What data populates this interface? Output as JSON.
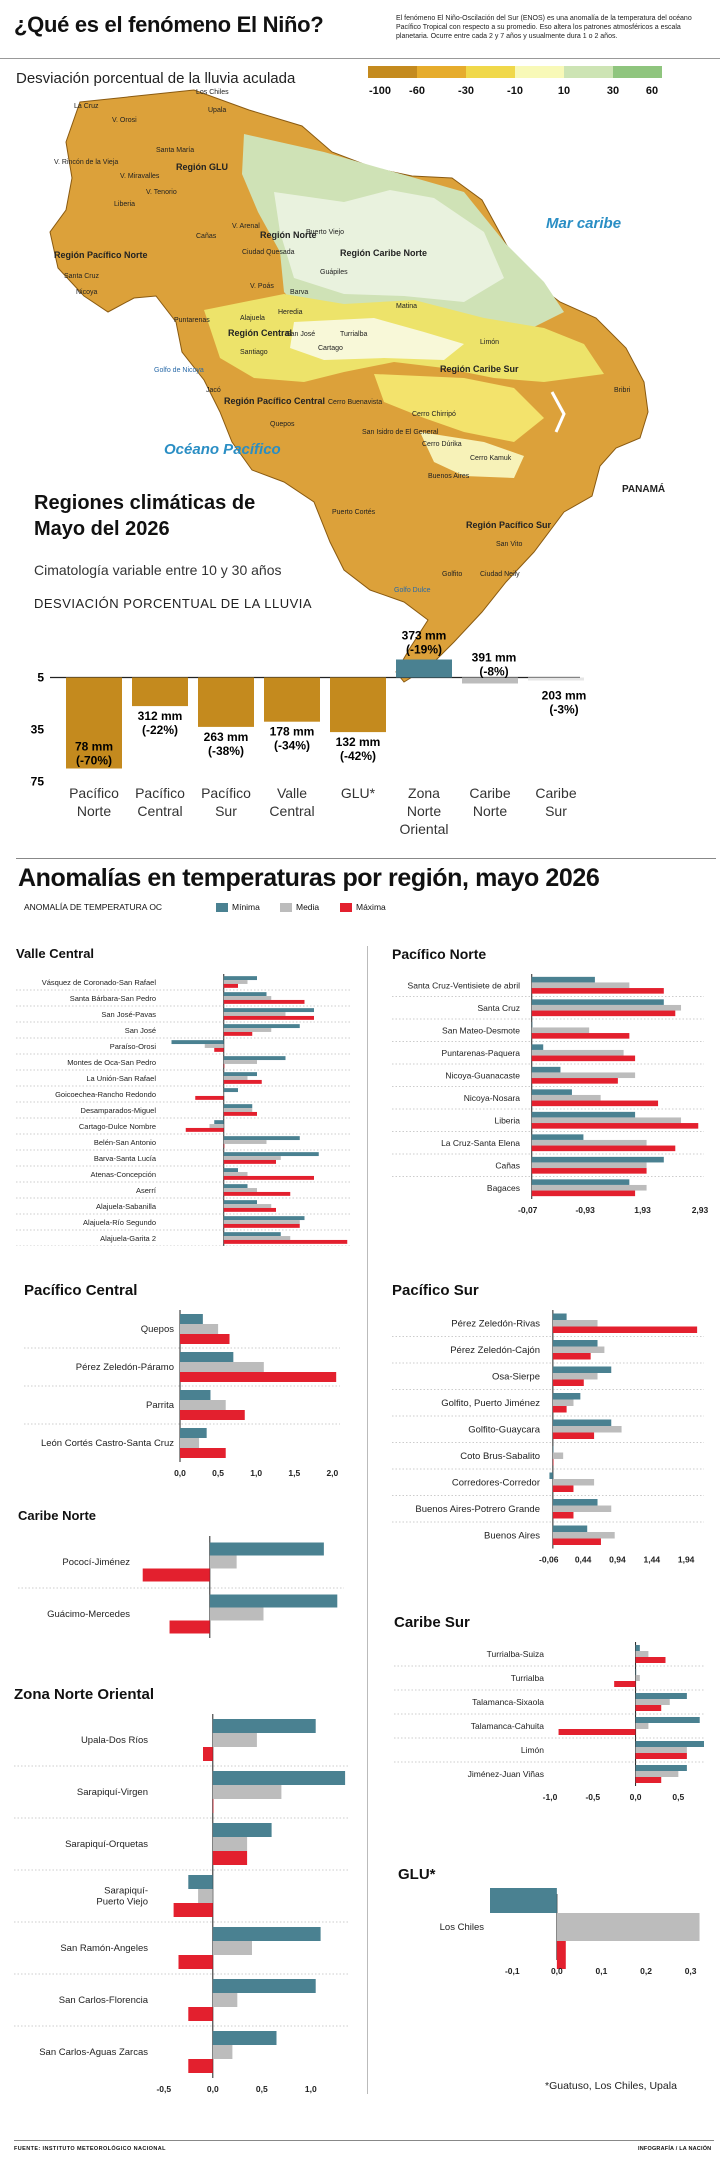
{
  "header": {
    "title": "¿Qué es el fenómeno El Niño?",
    "intro": "El fenómeno El Niño-Oscilación del Sur (ENOS) es una anomalía de la temperatura del océano Pacífico Tropical con respecto a su promedio. Eso altera los patrones atmosféricos a escala planetaria. Ocurre entre cada 2 y 7 años y usualmente dura 1 o 2 años."
  },
  "map": {
    "subtitle": "Desviación porcentual de la lluvia aculada",
    "scale": {
      "labels": [
        "-100",
        "-60",
        "-30",
        "-10",
        "10",
        "30",
        "60"
      ],
      "colors": [
        "#c48a1e",
        "#e6ac2c",
        "#f0d84a",
        "#f8f9b8",
        "#cde4b4",
        "#8fc57e"
      ]
    },
    "sea_labels": {
      "caribbean": "Mar caribe",
      "pacific": "Océano Pacífico",
      "panama": "PANAMÁ"
    },
    "regions": [
      "Región GLU",
      "Región Pacífico Norte",
      "Región Norte",
      "Región Caribe Norte",
      "Región Central",
      "Región Caribe Sur",
      "Región Pacífico Central",
      "Región Pacífico Sur"
    ],
    "places": [
      "La Cruz",
      "V. Orosi",
      "V. Rincón de la Vieja",
      "Santa María",
      "V. Miravalles",
      "V. Tenorio",
      "Liberia",
      "Los Chiles",
      "Upala",
      "Cañas",
      "V. Arenal",
      "Ciudad Quesada",
      "Puerto Viejo",
      "Guápiles",
      "Matina",
      "Santa Cruz",
      "Nicoya",
      "V. Poás",
      "Barva",
      "Alajuela",
      "Heredia",
      "San José",
      "Turrialba",
      "Cartago",
      "Puntarenas",
      "Santiago",
      "Limón",
      "Jacó",
      "Cerro Buenavista",
      "Quepos",
      "Cerro Chirripó",
      "San Isidro de El General",
      "Bribri",
      "Cerro Dúrika",
      "Cerro Kamuk",
      "Buenos Aires",
      "Puerto Cortés",
      "San Vito",
      "Golfito",
      "Ciudad Neily",
      "Golfo Dulce",
      "Golfo de Nicoya"
    ]
  },
  "rain": {
    "title_line1": "Regiones climáticas de",
    "title_line2": "Mayo del 2026",
    "subtitle": "Cimatología variable entre 10 y 30 años",
    "note": "DESVIACIÓN  PORCENTUAL DE LA LLUVIA"
  },
  "temp": {
    "title": "Anomalías en temperaturas por región, mayo 2026",
    "axis_label": "ANOMALÍA DE TEMPERATURA OC",
    "legend": [
      "Mínima",
      "Media",
      "Máxima"
    ],
    "colors": {
      "min": "#4a8191",
      "mean": "#bcbcbc",
      "max": "#e3202e"
    }
  },
  "chart_data": [
    {
      "id": "rain",
      "type": "bar",
      "categories": [
        "Pacífico Norte",
        "Pacífico Central",
        "Pacífico Sur",
        "Valle Central",
        "GLU*",
        "Zona Norte Oriental",
        "Caribe Norte",
        "Caribe Sur"
      ],
      "values": [
        -70,
        -22,
        -38,
        -34,
        -42,
        -19,
        -8,
        -3
      ],
      "labels_mm": [
        "78 mm",
        "312 mm",
        "263 mm",
        "178 mm",
        "132 mm",
        "373 mm",
        "391 mm",
        "203 mm"
      ],
      "labels_pct": [
        "(-70%)",
        "(-22%)",
        "(-38%)",
        "(-34%)",
        "(-42%)",
        "(-19%)",
        "(-8%)",
        "(-3%)"
      ],
      "yticks": [
        "5",
        "-35",
        "-75"
      ],
      "ylim": [
        -75,
        5
      ]
    },
    {
      "id": "valle-central",
      "type": "bar",
      "title": "Valle Central",
      "categories": [
        "Vásquez de Coronado-San Rafael",
        "Santa Bárbara-San Pedro",
        "San José-Pavas",
        "San José",
        "Paraíso-Orosi",
        "Montes de Oca-San Pedro",
        "La Unión-San Rafael",
        "Goicoechea-Rancho Redondo",
        "Desamparados-Miguel",
        "Cartago-Dulce Nombre",
        "Belén-San Antonio",
        "Barva-Santa Lucía",
        "Atenas-Concepción",
        "Aserrí",
        "Alajuela-Sabanilla",
        "Alajuela-Río Segundo",
        "Alajuela-Garita 2",
        "Alajuela-Garita"
      ],
      "series": [
        {
          "name": "Mínima",
          "values": [
            0.7,
            0.9,
            1.9,
            1.6,
            -1.1,
            1.3,
            0.7,
            0.3,
            0.6,
            -0.2,
            1.6,
            2.0,
            0.3,
            0.5,
            0.7,
            1.7,
            1.2,
            1.4
          ]
        },
        {
          "name": "Media",
          "values": [
            0.5,
            1.0,
            1.3,
            1.0,
            -0.4,
            0.7,
            0.5,
            0.0,
            0.6,
            -0.3,
            0.9,
            1.2,
            0.5,
            0.7,
            1.0,
            1.6,
            1.4,
            1.3
          ]
        },
        {
          "name": "Máxima",
          "values": [
            0.3,
            1.7,
            1.9,
            0.6,
            -0.2,
            0.0,
            0.8,
            -0.6,
            0.7,
            -0.8,
            0.0,
            1.1,
            1.9,
            1.4,
            1.1,
            1.6,
            2.6,
            1.3
          ]
        }
      ],
      "xticks": [
        "-1,12",
        "-0,12",
        "0,88",
        "1,88"
      ],
      "xlim": [
        -1.3,
        2.7
      ]
    },
    {
      "id": "pacifico-norte",
      "type": "bar",
      "title": "Pacífico Norte",
      "categories": [
        "Santa Cruz-Ventisiete de abril",
        "Santa Cruz",
        "San Mateo-Desmote",
        "Puntarenas-Paquera",
        "Nicoya-Guanacaste",
        "Nicoya-Nosara",
        "Liberia",
        "La Cruz-Santa Elena",
        "Cañas",
        "Bagaces"
      ],
      "series": [
        {
          "name": "Mínima",
          "values": [
            1.1,
            2.3,
            0.0,
            0.2,
            0.5,
            0.7,
            1.8,
            0.9,
            2.3,
            1.7
          ]
        },
        {
          "name": "Media",
          "values": [
            1.7,
            2.6,
            1.0,
            1.6,
            1.8,
            1.2,
            2.6,
            2.0,
            2.0,
            2.0
          ]
        },
        {
          "name": "Máxima",
          "values": [
            2.3,
            2.5,
            1.7,
            1.8,
            1.5,
            2.2,
            2.9,
            2.5,
            2.0,
            1.8
          ]
        }
      ],
      "xticks": [
        "-0,07",
        "-0,93",
        "1,93",
        "2,93"
      ],
      "xlim": [
        -0.1,
        3.0
      ]
    },
    {
      "id": "pacifico-central",
      "type": "bar",
      "title": "Pacífico Central",
      "categories": [
        "Quepos",
        "Pérez Zeledón-Páramo",
        "Parrita",
        "León Cortés Castro-Santa Cruz"
      ],
      "series": [
        {
          "name": "Mínima",
          "values": [
            0.3,
            0.7,
            0.4,
            0.35
          ]
        },
        {
          "name": "Media",
          "values": [
            0.5,
            1.1,
            0.6,
            0.25
          ]
        },
        {
          "name": "Máxima",
          "values": [
            0.65,
            2.05,
            0.85,
            0.6
          ]
        }
      ],
      "xticks": [
        "0,0",
        "0,5",
        "1,0",
        "1,5",
        "2,0"
      ],
      "xlim": [
        0,
        2.1
      ]
    },
    {
      "id": "pacifico-sur",
      "type": "bar",
      "title": "Pacífico Sur",
      "categories": [
        "Pérez Zeledón-Rivas",
        "Pérez Zeledón-Cajón",
        "Osa-Sierpe",
        "Golfito, Puerto Jiménez",
        "Golfito-Guaycara",
        "Coto Brus-Sabalito",
        "Corredores-Corredor",
        "Buenos Aires-Potrero Grande",
        "Buenos Aires"
      ],
      "series": [
        {
          "name": "Mínima",
          "values": [
            0.2,
            0.65,
            0.85,
            0.4,
            0.85,
            0.0,
            -0.05,
            0.65,
            0.5
          ]
        },
        {
          "name": "Media",
          "values": [
            0.65,
            0.75,
            0.65,
            0.3,
            1.0,
            0.15,
            0.6,
            0.85,
            0.9
          ]
        },
        {
          "name": "Máxima",
          "values": [
            2.1,
            0.55,
            0.45,
            0.2,
            0.6,
            0.0,
            0.3,
            0.3,
            0.7
          ]
        }
      ],
      "xticks": [
        "-0,06",
        "0,44",
        "0,94",
        "1,44",
        "1,94"
      ],
      "xlim": [
        -0.1,
        2.2
      ]
    },
    {
      "id": "caribe-norte",
      "type": "bar",
      "title": "Caribe Norte",
      "categories": [
        "Pococí-Jiménez",
        "Guácimo-Mercedes"
      ],
      "series": [
        {
          "name": "Mínima",
          "values": [
            0.85,
            0.95
          ]
        },
        {
          "name": "Media",
          "values": [
            0.2,
            0.4
          ]
        },
        {
          "name": "Máxima",
          "values": [
            -0.5,
            -0.3
          ]
        }
      ],
      "xticks": [
        "-0,5",
        "0,0",
        "1,5",
        "1,0"
      ],
      "xlim": [
        -0.55,
        1.0
      ]
    },
    {
      "id": "caribe-sur",
      "type": "bar",
      "title": "Caribe Sur",
      "categories": [
        "Turrialba-Suiza",
        "Turrialba",
        "Talamanca-Sixaola",
        "Talamanca-Cahuita",
        "Limón",
        "Jiménez-Juan Viñas"
      ],
      "series": [
        {
          "name": "Mínima",
          "values": [
            0.05,
            0.0,
            0.6,
            0.75,
            0.8,
            0.6
          ]
        },
        {
          "name": "Media",
          "values": [
            0.15,
            0.05,
            0.4,
            0.15,
            0.6,
            0.5
          ]
        },
        {
          "name": "Máxima",
          "values": [
            0.35,
            -0.25,
            0.3,
            -0.9,
            0.6,
            0.3
          ]
        }
      ],
      "xticks": [
        "-1,0",
        "-0,5",
        "0,0",
        "0,5"
      ],
      "xlim": [
        -1.0,
        0.8
      ]
    },
    {
      "id": "zona-norte-oriental",
      "type": "bar",
      "title": "Zona Norte Oriental",
      "categories": [
        "Upala-Dos Ríos",
        "Sarapiquí-Virgen",
        "Sarapiquí-Orquetas",
        "Sarapiquí-Puerto Viejo",
        "San Ramón-Angeles",
        "San Carlos-Florencia",
        "San Carlos-Aguas Zarcas"
      ],
      "series": [
        {
          "name": "Mínima",
          "values": [
            1.05,
            1.35,
            0.6,
            -0.25,
            1.1,
            1.05,
            0.65
          ]
        },
        {
          "name": "Media",
          "values": [
            0.45,
            0.7,
            0.35,
            -0.15,
            0.4,
            0.25,
            0.2
          ]
        },
        {
          "name": "Máxima",
          "values": [
            -0.1,
            0.0,
            0.35,
            -0.4,
            -0.35,
            -0.25,
            -0.25
          ]
        }
      ],
      "xticks": [
        "-0,5",
        "0,0",
        "0,5",
        "1,0"
      ],
      "xlim": [
        -0.6,
        1.4
      ]
    },
    {
      "id": "glu",
      "type": "bar",
      "title": "GLU*",
      "categories": [
        "Los Chiles"
      ],
      "series": [
        {
          "name": "Mínima",
          "values": [
            -0.15
          ]
        },
        {
          "name": "Media",
          "values": [
            0.32
          ]
        },
        {
          "name": "Máxima",
          "values": [
            0.02
          ]
        }
      ],
      "xticks": [
        "-0,1",
        "0,0",
        "0,1",
        "0,2",
        "0,3"
      ],
      "xlim": [
        -0.15,
        0.33
      ]
    }
  ],
  "glu_note": "*Guatuso, Los Chiles, Upala",
  "footer": {
    "source": "FUENTE: INSTITUTO METEOROLÓGICO NACIONAL",
    "credit": "INFOGRAFÍA / LA NACIÓN"
  }
}
